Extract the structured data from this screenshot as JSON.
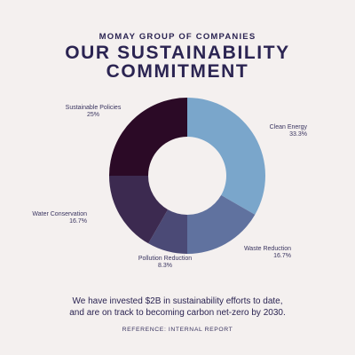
{
  "header": {
    "eyebrow": "MOMAY GROUP OF COMPANIES",
    "title_line1": "OUR SUSTAINABILITY",
    "title_line2": "COMMITMENT"
  },
  "chart_data": {
    "type": "pie",
    "donut": true,
    "categories": [
      "Clean Energy",
      "Waste Reduction",
      "Pollution Reduction",
      "Water Conservation",
      "Sustainable Policies"
    ],
    "values": [
      33.3,
      16.7,
      8.3,
      16.7,
      25
    ],
    "value_labels": [
      "33.3%",
      "16.7%",
      "8.3%",
      "16.7%",
      "25%"
    ],
    "colors": [
      "#7aa6cb",
      "#60729f",
      "#4b4a76",
      "#3c2a50",
      "#2b0a26"
    ],
    "legend": "none"
  },
  "footer": {
    "line1": "We have invested $2B in sustainability efforts to date,",
    "line2": "and are on track to becoming carbon net-zero by 2030.",
    "reference": "REFERENCE: INTERNAL REPORT"
  }
}
